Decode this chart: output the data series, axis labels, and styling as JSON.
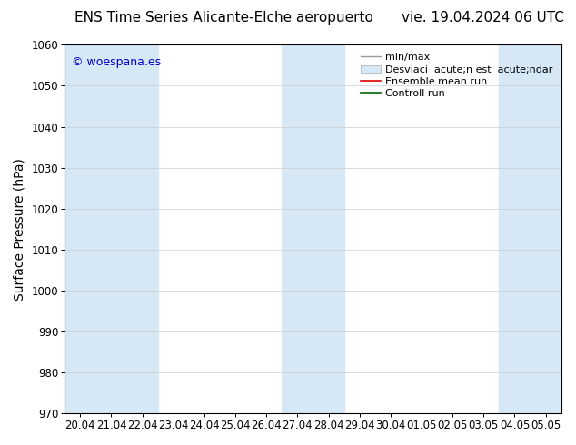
{
  "title_left": "ENS Time Series Alicante-Elche aeropuerto",
  "title_right": "vie. 19.04.2024 06 UTC",
  "ylabel": "Surface Pressure (hPa)",
  "ylim": [
    970,
    1060
  ],
  "yticks": [
    970,
    980,
    990,
    1000,
    1010,
    1020,
    1030,
    1040,
    1050,
    1060
  ],
  "xtick_labels": [
    "20.04",
    "21.04",
    "22.04",
    "23.04",
    "24.04",
    "25.04",
    "26.04",
    "27.04",
    "28.04",
    "29.04",
    "30.04",
    "01.05",
    "02.05",
    "03.05",
    "04.05",
    "05.05"
  ],
  "shade_color": "#d6e8f5",
  "bg_color": "#ffffff",
  "watermark_text": "© woespana.es",
  "watermark_color": "#0000cc",
  "legend_label_minmax": "min/max",
  "legend_label_std": "Desviaci  acute;n est  acute;ndar",
  "legend_label_ensemble": "Ensemble mean run",
  "legend_label_control": "Controll run",
  "title_fontsize": 11,
  "tick_fontsize": 8.5,
  "ylabel_fontsize": 10,
  "legend_fontsize": 8
}
